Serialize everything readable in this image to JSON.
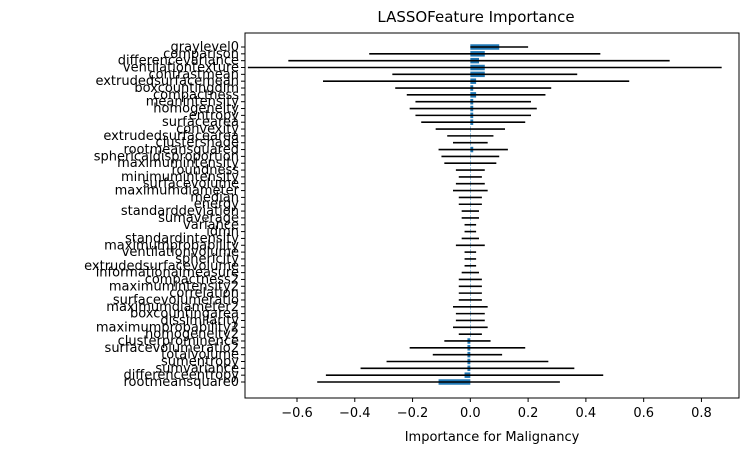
{
  "chart_data": {
    "type": "bar",
    "orientation": "horizontal",
    "title": "LASSOFeature Importance",
    "xlabel": "Importance for Malignancy",
    "ylabel": "",
    "xlim": [
      -0.78,
      0.93
    ],
    "xticks": [
      -0.6,
      -0.4,
      -0.2,
      0.0,
      0.2,
      0.4,
      0.6,
      0.8
    ],
    "xtick_labels": [
      "−0.6",
      "−0.4",
      "−0.2",
      "0.0",
      "0.2",
      "0.4",
      "0.6",
      "0.8"
    ],
    "bar_color": "#1f77b4",
    "error_bar_color": "#000000",
    "categories": [
      "graylevel0",
      "comparison",
      "differencevariance",
      "ventilationtexture",
      "contrastmean",
      "extrudedsurfacemean",
      "boxcountingdim",
      "compactness",
      "meanintensity",
      "homogeneity",
      "entropy",
      "surfacearea",
      "convexity",
      "extrudedsurfacearea",
      "clustershade",
      "rootmeansquared",
      "sphericaldisproportion",
      "maximumintensity",
      "roundness",
      "minimumintensity",
      "surfacevolume",
      "maximumdiameter",
      "median",
      "energy",
      "standarddeviation",
      "sumaverage",
      "variance",
      "idmn",
      "standardintensity",
      "maximumprobability",
      "ventilationvolume",
      "sphericity",
      "extrudedsurfacevolume",
      "informationalmeasure",
      "compactness2",
      "maximumintensity2",
      "correlation",
      "surfacevolumeratio",
      "maximumdiameter2",
      "boxcountingarea",
      "dissimilarity",
      "maximumprobability2",
      "homogeneity2",
      "clusterprominence",
      "surfacevolumeratio2",
      "totalvolume",
      "sumentropy",
      "sumvariance",
      "differenceentropy",
      "rootmeansquare0"
    ],
    "values": [
      0.1,
      0.05,
      0.03,
      0.05,
      0.05,
      0.02,
      0.01,
      0.02,
      0.01,
      0.01,
      0.01,
      0.01,
      0.0,
      0.0,
      0.0,
      0.01,
      0.0,
      0.0,
      0.0,
      0.0,
      0.0,
      0.0,
      0.0,
      0.0,
      0.0,
      0.0,
      0.0,
      0.0,
      0.0,
      0.0,
      0.0,
      0.0,
      0.0,
      0.0,
      0.0,
      0.0,
      0.0,
      0.0,
      0.0,
      0.0,
      0.0,
      0.0,
      0.0,
      -0.01,
      -0.01,
      -0.01,
      -0.01,
      -0.01,
      -0.02,
      -0.11
    ],
    "errors": [
      0.1,
      0.4,
      0.66,
      0.82,
      0.32,
      0.53,
      0.27,
      0.24,
      0.2,
      0.22,
      0.2,
      0.18,
      0.12,
      0.08,
      0.06,
      0.12,
      0.1,
      0.09,
      0.05,
      0.04,
      0.05,
      0.06,
      0.04,
      0.04,
      0.03,
      0.03,
      0.02,
      0.02,
      0.03,
      0.05,
      0.02,
      0.02,
      0.02,
      0.03,
      0.04,
      0.04,
      0.04,
      0.04,
      0.06,
      0.05,
      0.05,
      0.06,
      0.04,
      0.08,
      0.2,
      0.12,
      0.28,
      0.37,
      0.48,
      0.42
    ],
    "grid": false,
    "legend": "none"
  }
}
